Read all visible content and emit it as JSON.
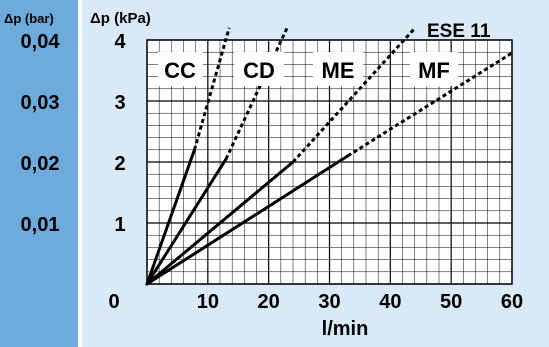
{
  "chart_data": {
    "type": "line",
    "title": "ESE 11",
    "xlabel": "l/min",
    "ylabel": "Δp (kPa)",
    "ylabel_secondary": "Δp (bar)",
    "xlim": [
      0,
      60
    ],
    "ylim": [
      0,
      4
    ],
    "x_ticks": [
      "0",
      "10",
      "20",
      "30",
      "40",
      "50",
      "60"
    ],
    "y_ticks": [
      "1",
      "2",
      "3",
      "4"
    ],
    "y2_ticks": [
      "0,01",
      "0,02",
      "0,03",
      "0,04"
    ],
    "grid": true,
    "x_minor_step": 2,
    "y_minor_step": 0.2,
    "series": [
      {
        "name": "CC",
        "solid": {
          "x": [
            0,
            7.8
          ],
          "y": [
            0,
            2.2
          ]
        },
        "dashed": {
          "x": [
            7.8,
            13.8
          ],
          "y": [
            2.2,
            4.3
          ]
        }
      },
      {
        "name": "CD",
        "solid": {
          "x": [
            0,
            13.0
          ],
          "y": [
            0,
            2.05
          ]
        },
        "dashed": {
          "x": [
            13.0,
            23.5
          ],
          "y": [
            2.05,
            4.3
          ]
        }
      },
      {
        "name": "ME",
        "solid": {
          "x": [
            0,
            24.0
          ],
          "y": [
            0,
            2.0
          ]
        },
        "dashed": {
          "x": [
            24.0,
            45.0
          ],
          "y": [
            2.0,
            4.3
          ]
        }
      },
      {
        "name": "MF",
        "solid": {
          "x": [
            0,
            33.0
          ],
          "y": [
            0,
            2.1
          ]
        },
        "dashed": {
          "x": [
            33.0,
            61.0
          ],
          "y": [
            2.1,
            3.85
          ]
        }
      }
    ],
    "colors": {
      "line": "#000000",
      "grid": "#000000",
      "plot_bg": "#ffffff",
      "panel_bg": "#d9e9f7",
      "bar_strip": "#6faadc"
    }
  }
}
